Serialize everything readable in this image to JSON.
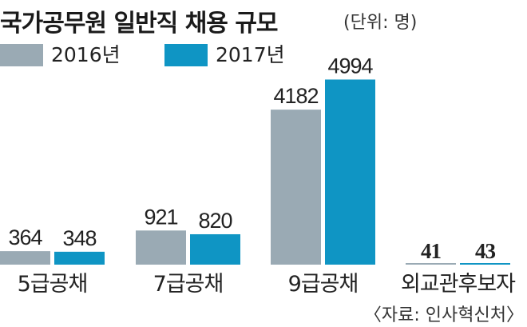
{
  "header": {
    "title": "국가공무원 일반직 채용 규모",
    "unit": "(단위: 명)"
  },
  "source": "〈자료: 인사혁신처〉",
  "colors": {
    "series_2016": "#9aaab4",
    "series_2017": "#0f95c4",
    "text": "#222222"
  },
  "chart_data": {
    "type": "bar",
    "title": "국가공무원 일반직 채용 규모",
    "unit": "(단위: 명)",
    "categories": [
      "5급공채",
      "7급공채",
      "9급공채",
      "외교관후보자"
    ],
    "series": [
      {
        "name": "2016년",
        "values": [
          364,
          921,
          4182,
          41
        ]
      },
      {
        "name": "2017년",
        "values": [
          348,
          820,
          4994,
          43
        ]
      }
    ],
    "legend": "top-left",
    "grid": false
  }
}
